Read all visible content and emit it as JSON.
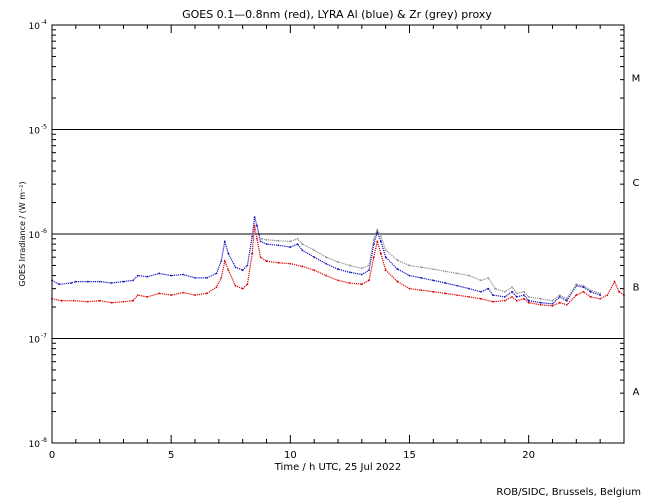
{
  "chart_data": {
    "type": "line",
    "title": "GOES 0.1—0.8nm (red), LYRA Al (blue) & Zr (grey) proxy",
    "xlabel": "Time / h UTC, 25 Jul 2022",
    "ylabel": "GOES Irradiance / (W m⁻²)",
    "credit": "ROB/SIDC, Brussels, Belgium",
    "x_range": [
      0,
      24
    ],
    "y_range_log10": [
      -8,
      -4
    ],
    "log_scale_y": true,
    "x_ticks": [
      {
        "value": 0,
        "label": "0"
      },
      {
        "value": 5,
        "label": "5"
      },
      {
        "value": 10,
        "label": "10"
      },
      {
        "value": 15,
        "label": "15"
      },
      {
        "value": 20,
        "label": "20"
      }
    ],
    "y_ticks": [
      {
        "exp": -8,
        "label": "10",
        "sup": "-8"
      },
      {
        "exp": -7,
        "label": "10",
        "sup": "-7"
      },
      {
        "exp": -6,
        "label": "10",
        "sup": "-6"
      },
      {
        "exp": -5,
        "label": "10",
        "sup": "-5"
      },
      {
        "exp": -4,
        "label": "10",
        "sup": "-4"
      }
    ],
    "flare_classes": [
      {
        "label": "A",
        "exp": -7.5
      },
      {
        "label": "B",
        "exp": -6.5
      },
      {
        "label": "C",
        "exp": -5.5
      },
      {
        "label": "M",
        "exp": -4.5
      }
    ],
    "reference_lines_exp": [
      -7,
      -6,
      -5
    ],
    "series": [
      {
        "color": "#dd0000",
        "points": [
          [
            0,
            2.4e-07
          ],
          [
            0.4,
            2.3e-07
          ],
          [
            0.9,
            2.3e-07
          ],
          [
            1.5,
            2.25e-07
          ],
          [
            2,
            2.3e-07
          ],
          [
            2.5,
            2.2e-07
          ],
          [
            3,
            2.25e-07
          ],
          [
            3.4,
            2.3e-07
          ],
          [
            3.6,
            2.6e-07
          ],
          [
            4,
            2.5e-07
          ],
          [
            4.5,
            2.7e-07
          ],
          [
            5,
            2.6e-07
          ],
          [
            5.5,
            2.75e-07
          ],
          [
            6,
            2.6e-07
          ],
          [
            6.5,
            2.7e-07
          ],
          [
            6.9,
            3.1e-07
          ],
          [
            7.1,
            3.8e-07
          ],
          [
            7.25,
            5.5e-07
          ],
          [
            7.4,
            4.5e-07
          ],
          [
            7.7,
            3.2e-07
          ],
          [
            8,
            3e-07
          ],
          [
            8.2,
            3.3e-07
          ],
          [
            8.4,
            6.5e-07
          ],
          [
            8.5,
            1.2e-06
          ],
          [
            8.6,
            9e-07
          ],
          [
            8.75,
            6e-07
          ],
          [
            9,
            5.5e-07
          ],
          [
            9.5,
            5.3e-07
          ],
          [
            10,
            5.2e-07
          ],
          [
            10.5,
            4.9e-07
          ],
          [
            11,
            4.5e-07
          ],
          [
            11.5,
            4e-07
          ],
          [
            12,
            3.6e-07
          ],
          [
            12.5,
            3.4e-07
          ],
          [
            13,
            3.3e-07
          ],
          [
            13.3,
            3.6e-07
          ],
          [
            13.5,
            6e-07
          ],
          [
            13.65,
            8.5e-07
          ],
          [
            13.8,
            6.5e-07
          ],
          [
            14,
            4.5e-07
          ],
          [
            14.5,
            3.5e-07
          ],
          [
            15,
            3e-07
          ],
          [
            15.5,
            2.9e-07
          ],
          [
            16,
            2.8e-07
          ],
          [
            16.5,
            2.7e-07
          ],
          [
            17,
            2.6e-07
          ],
          [
            17.5,
            2.5e-07
          ],
          [
            18,
            2.4e-07
          ],
          [
            18.5,
            2.25e-07
          ],
          [
            19,
            2.3e-07
          ],
          [
            19.3,
            2.5e-07
          ],
          [
            19.5,
            2.3e-07
          ],
          [
            19.8,
            2.4e-07
          ],
          [
            20,
            2.2e-07
          ],
          [
            20.5,
            2.1e-07
          ],
          [
            21,
            2.05e-07
          ],
          [
            21.3,
            2.2e-07
          ],
          [
            21.6,
            2.1e-07
          ],
          [
            22,
            2.6e-07
          ],
          [
            22.3,
            2.8e-07
          ],
          [
            22.6,
            2.5e-07
          ],
          [
            23,
            2.4e-07
          ],
          [
            23.3,
            2.6e-07
          ],
          [
            23.6,
            3.5e-07
          ],
          [
            23.8,
            2.8e-07
          ],
          [
            24,
            2.6e-07
          ]
        ]
      },
      {
        "color": "#1010c0",
        "points": [
          [
            0,
            3.6e-07
          ],
          [
            0.3,
            3.3e-07
          ],
          [
            0.8,
            3.4e-07
          ],
          [
            1,
            3.5e-07
          ],
          [
            1.5,
            3.5e-07
          ],
          [
            2,
            3.5e-07
          ],
          [
            2.5,
            3.4e-07
          ],
          [
            3,
            3.5e-07
          ],
          [
            3.4,
            3.6e-07
          ],
          [
            3.6,
            4e-07
          ],
          [
            4,
            3.9e-07
          ],
          [
            4.5,
            4.2e-07
          ],
          [
            5,
            4e-07
          ],
          [
            5.5,
            4.1e-07
          ],
          [
            6,
            3.8e-07
          ],
          [
            6.5,
            3.8e-07
          ],
          [
            6.9,
            4.2e-07
          ],
          [
            7.1,
            5.5e-07
          ],
          [
            7.25,
            8.5e-07
          ],
          [
            7.4,
            6.5e-07
          ],
          [
            7.7,
            4.8e-07
          ],
          [
            8,
            4.5e-07
          ],
          [
            8.2,
            5e-07
          ],
          [
            8.4,
            9.5e-07
          ],
          [
            8.5,
            1.45e-06
          ],
          [
            8.6,
            1.2e-06
          ],
          [
            8.75,
            8.5e-07
          ],
          [
            9,
            8e-07
          ],
          [
            9.5,
            7.8e-07
          ],
          [
            10,
            7.5e-07
          ],
          [
            10.3,
            8e-07
          ],
          [
            10.5,
            7e-07
          ],
          [
            11,
            6e-07
          ],
          [
            11.5,
            5.2e-07
          ],
          [
            12,
            4.6e-07
          ],
          [
            12.5,
            4.3e-07
          ],
          [
            13,
            4.1e-07
          ],
          [
            13.3,
            4.5e-07
          ],
          [
            13.5,
            8e-07
          ],
          [
            13.65,
            1.05e-06
          ],
          [
            13.8,
            8.5e-07
          ],
          [
            14,
            6e-07
          ],
          [
            14.5,
            4.6e-07
          ],
          [
            15,
            4e-07
          ],
          [
            15.5,
            3.8e-07
          ],
          [
            16,
            3.6e-07
          ],
          [
            16.5,
            3.4e-07
          ],
          [
            17,
            3.2e-07
          ],
          [
            17.5,
            3e-07
          ],
          [
            18,
            2.8e-07
          ],
          [
            18.3,
            3e-07
          ],
          [
            18.5,
            2.6e-07
          ],
          [
            19,
            2.5e-07
          ],
          [
            19.3,
            2.8e-07
          ],
          [
            19.5,
            2.5e-07
          ],
          [
            19.8,
            2.6e-07
          ],
          [
            20,
            2.3e-07
          ],
          [
            20.5,
            2.2e-07
          ],
          [
            21,
            2.15e-07
          ],
          [
            21.3,
            2.5e-07
          ],
          [
            21.6,
            2.3e-07
          ],
          [
            22,
            3.2e-07
          ],
          [
            22.3,
            3.1e-07
          ],
          [
            22.6,
            2.8e-07
          ],
          [
            23,
            2.6e-07
          ]
        ]
      },
      {
        "color": "#909090",
        "points": [
          [
            8.8,
            9e-07
          ],
          [
            9,
            8.8e-07
          ],
          [
            9.5,
            8.6e-07
          ],
          [
            10,
            8.5e-07
          ],
          [
            10.3,
            9e-07
          ],
          [
            10.5,
            8e-07
          ],
          [
            11,
            7e-07
          ],
          [
            11.5,
            6e-07
          ],
          [
            12,
            5.4e-07
          ],
          [
            12.5,
            5e-07
          ],
          [
            13,
            4.7e-07
          ],
          [
            13.3,
            5e-07
          ],
          [
            13.5,
            9e-07
          ],
          [
            13.65,
            1.1e-06
          ],
          [
            13.8,
            9.5e-07
          ],
          [
            14,
            7e-07
          ],
          [
            14.5,
            5.6e-07
          ],
          [
            15,
            5e-07
          ],
          [
            15.5,
            4.8e-07
          ],
          [
            16,
            4.6e-07
          ],
          [
            16.5,
            4.4e-07
          ],
          [
            17,
            4.2e-07
          ],
          [
            17.5,
            4e-07
          ],
          [
            18,
            3.6e-07
          ],
          [
            18.3,
            3.8e-07
          ],
          [
            18.6,
            3e-07
          ],
          [
            19,
            2.8e-07
          ],
          [
            19.3,
            3.1e-07
          ],
          [
            19.5,
            2.7e-07
          ],
          [
            19.8,
            2.8e-07
          ],
          [
            20,
            2.5e-07
          ],
          [
            20.5,
            2.4e-07
          ],
          [
            21,
            2.3e-07
          ],
          [
            21.3,
            2.6e-07
          ],
          [
            21.6,
            2.4e-07
          ],
          [
            22,
            3.3e-07
          ],
          [
            22.3,
            3.2e-07
          ],
          [
            22.6,
            2.9e-07
          ],
          [
            23,
            2.7e-07
          ]
        ]
      }
    ]
  }
}
